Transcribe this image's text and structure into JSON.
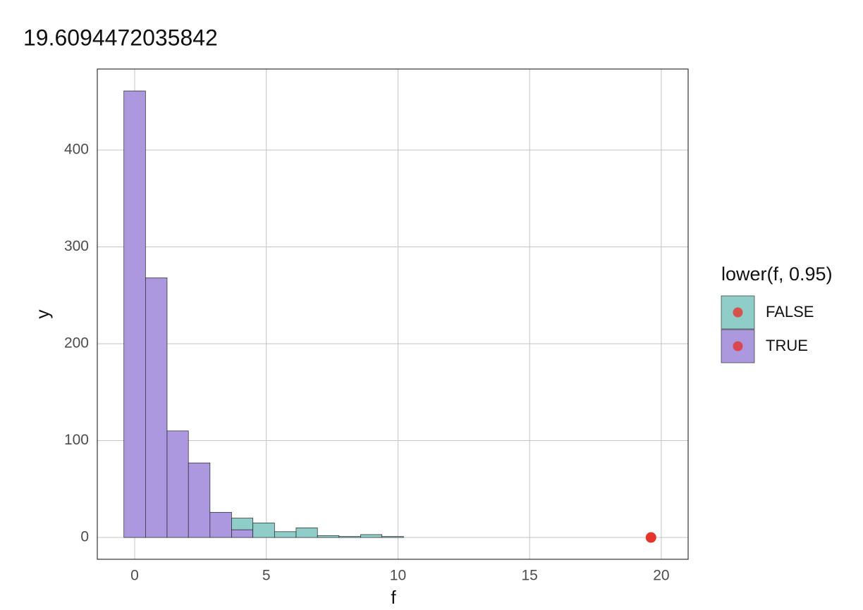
{
  "chart_data": {
    "type": "histogram",
    "title": "19.6094472035842",
    "x_label": "f",
    "y_label": "y",
    "legend_title": "lower(f, 0.95)",
    "bins": [
      -0.41,
      0.41,
      1.23,
      2.04,
      2.86,
      3.68,
      4.49,
      5.31,
      6.13,
      6.94,
      7.76,
      8.58,
      9.39,
      10.21,
      11.03,
      11.84,
      12.66,
      13.48,
      14.29,
      15.11,
      15.93,
      16.74,
      17.56,
      18.38,
      19.19,
      20.01
    ],
    "series": [
      {
        "name": "FALSE",
        "color": "#8fcdc9",
        "values": [
          0,
          0,
          0,
          0,
          0,
          12,
          15,
          6,
          10,
          2,
          1,
          3,
          1,
          0,
          0,
          0,
          0,
          0,
          0,
          0,
          0,
          0,
          0,
          0,
          0
        ]
      },
      {
        "name": "TRUE",
        "color": "#ab98de",
        "values": [
          461,
          268,
          110,
          77,
          26,
          8,
          0,
          0,
          0,
          0,
          0,
          0,
          0,
          0,
          0,
          0,
          0,
          0,
          0,
          0,
          0,
          0,
          0,
          0,
          0
        ]
      }
    ],
    "point": {
      "x": 19.6094472035842,
      "y": 0,
      "color": "#e8332b"
    },
    "xlim": [
      -1.42,
      21.02
    ],
    "ylim": [
      -22.5,
      483.6
    ],
    "xticks": [
      0,
      5,
      10,
      15,
      20
    ],
    "yticks": [
      0,
      100,
      200,
      300,
      400
    ],
    "grid": true
  }
}
